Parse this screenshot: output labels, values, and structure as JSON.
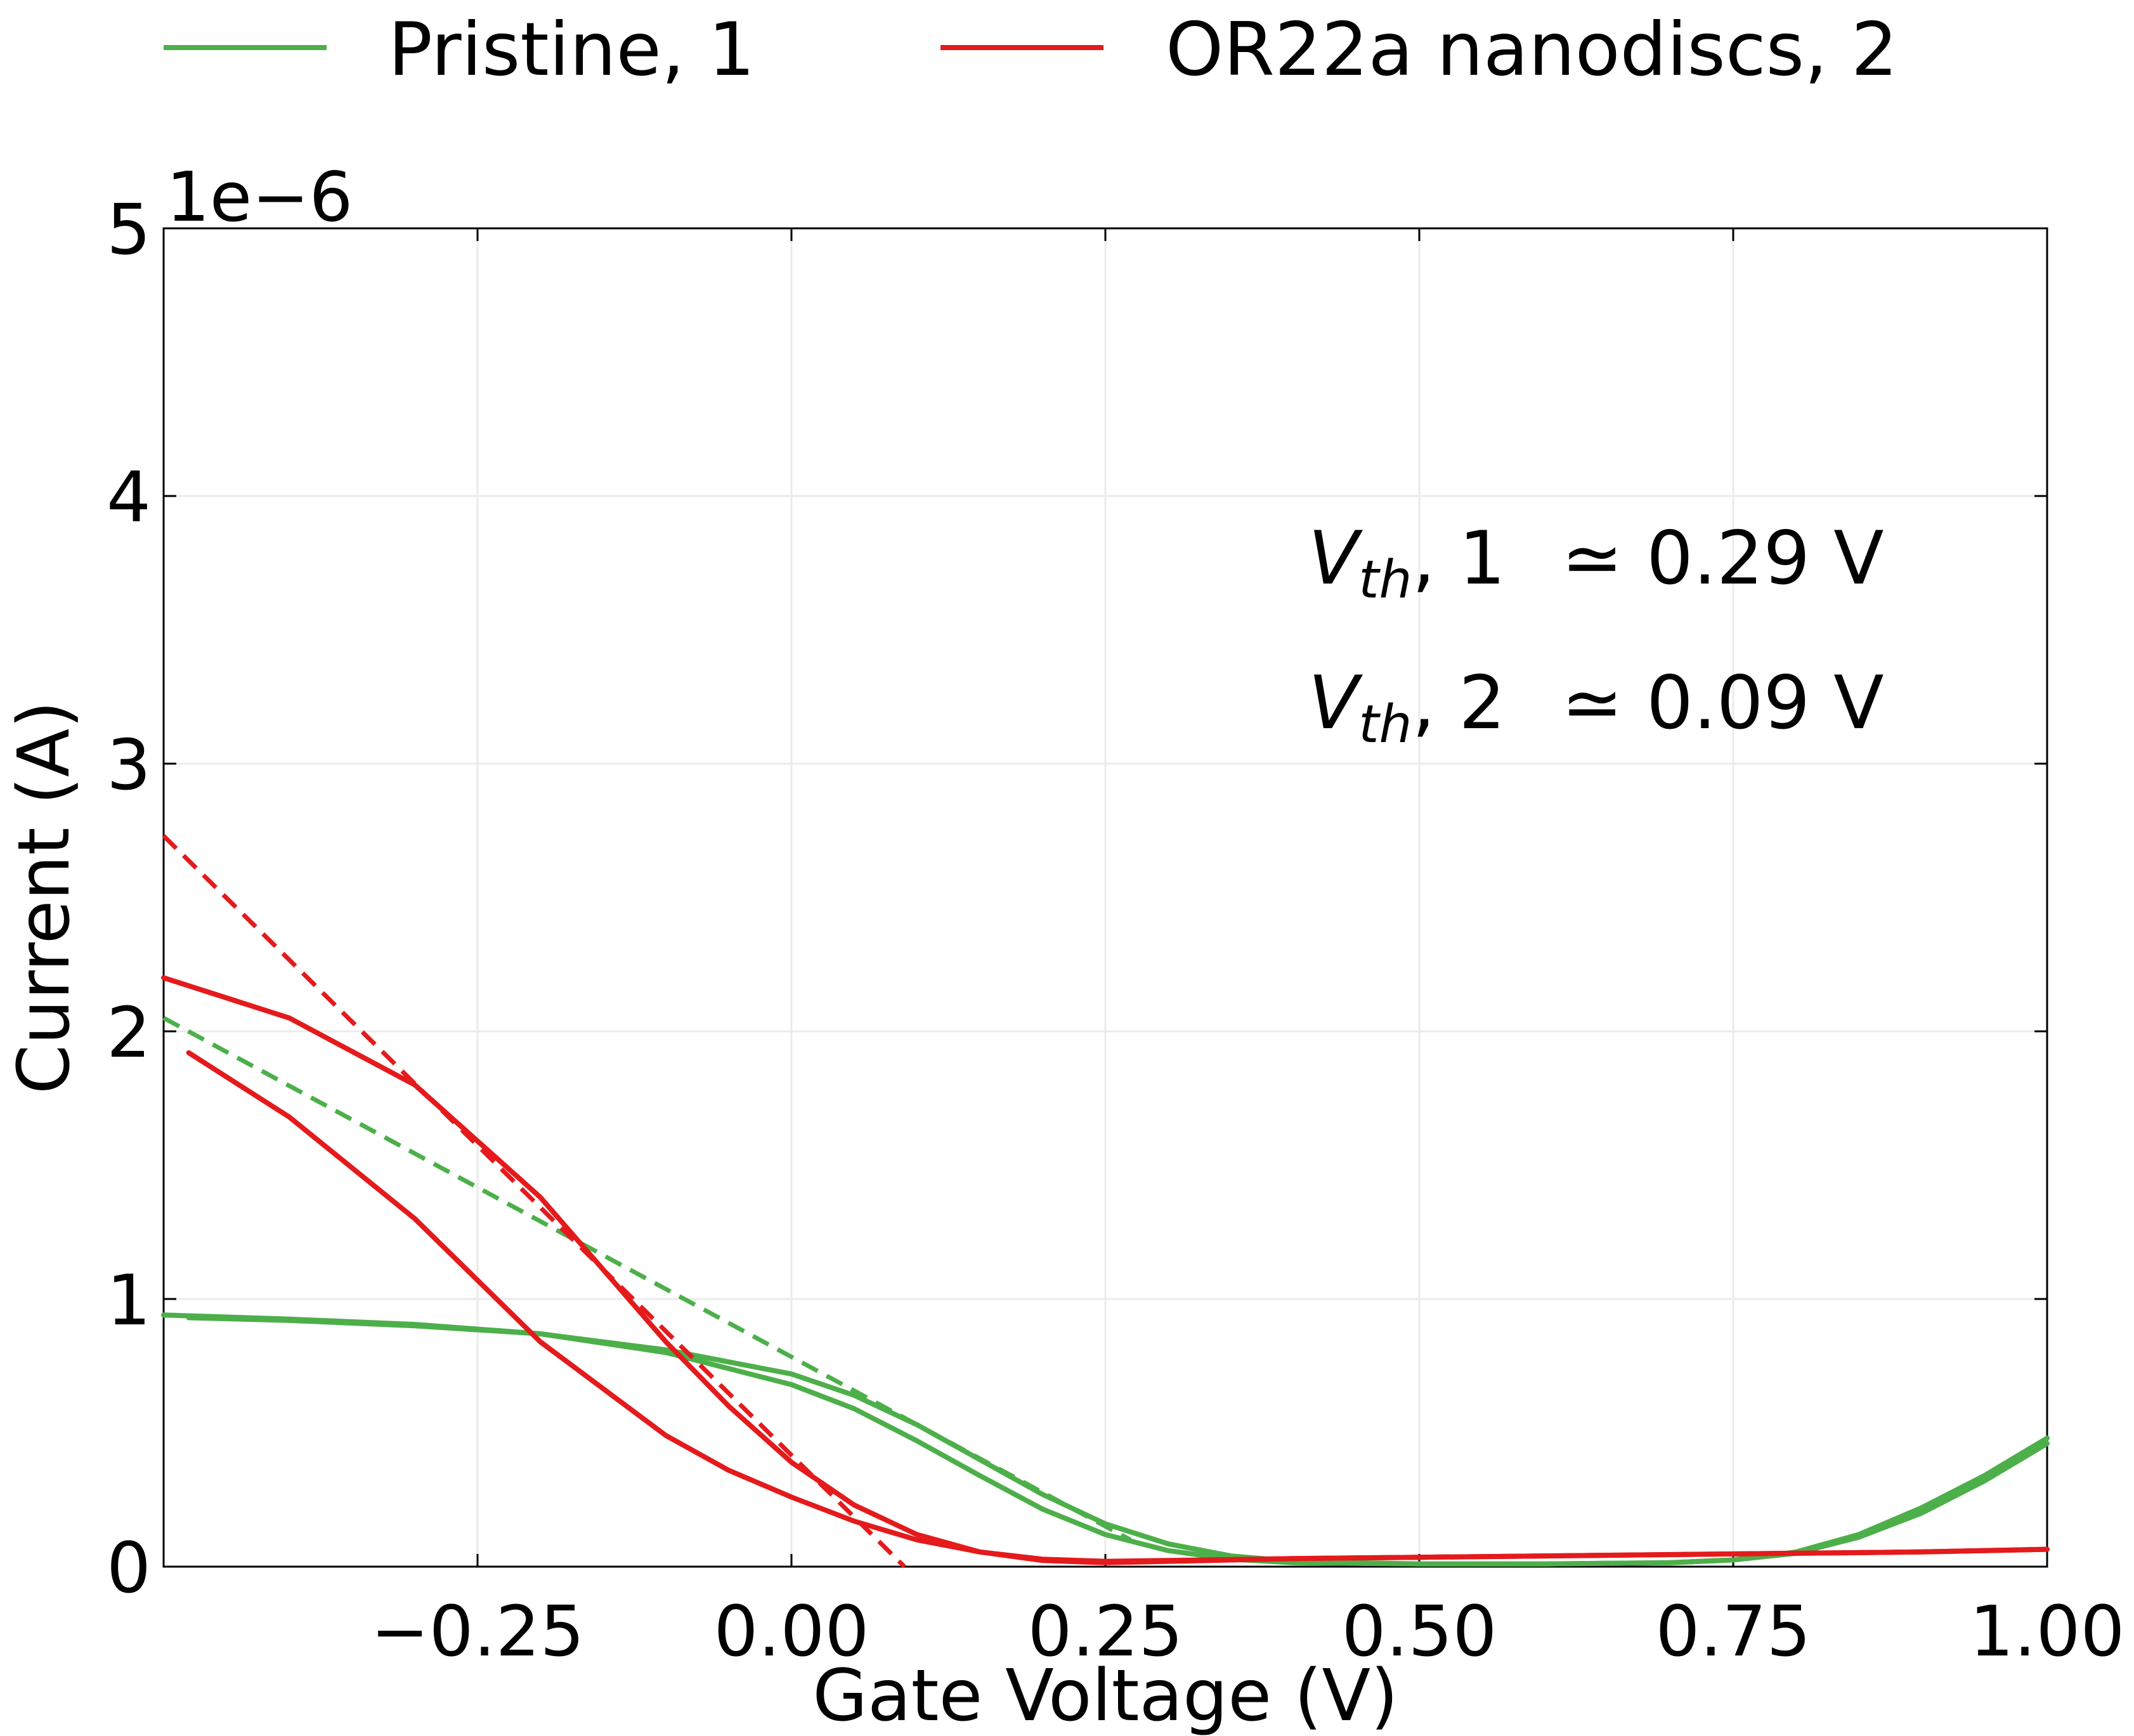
{
  "chart_data": {
    "type": "line",
    "xlabel": "Gate Voltage (V)",
    "ylabel": "Current (A)",
    "y_offset_label": "1e−6",
    "xlim": [
      -0.5,
      1.0
    ],
    "ylim": [
      0,
      5e-06
    ],
    "x_ticks": [
      -0.25,
      0.0,
      0.25,
      0.5,
      0.75,
      1.0
    ],
    "x_tick_labels": [
      "−0.25",
      "0.00",
      "0.25",
      "0.50",
      "0.75",
      "1.00"
    ],
    "y_ticks": [
      0,
      1e-06,
      2e-06,
      3e-06,
      4e-06,
      5e-06
    ],
    "y_tick_labels": [
      "0",
      "1",
      "2",
      "3",
      "4",
      "5"
    ],
    "grid": true,
    "legend_position": "top",
    "legend": [
      {
        "label": "Pristine, 1",
        "color": "#4daf4a"
      },
      {
        "label": "OR22a nanodiscs, 2",
        "color": "#e41a1c"
      }
    ],
    "annotations": [
      {
        "symbol": "V",
        "subscript": "th",
        "label": ", 1",
        "value": "≃ 0.29 V"
      },
      {
        "symbol": "V",
        "subscript": "th",
        "label": ", 2",
        "value": "≃ 0.09 V"
      }
    ],
    "series": [
      {
        "name": "Pristine, 1",
        "color": "#4daf4a",
        "style": "solid",
        "x": [
          -0.5,
          -0.4,
          -0.3,
          -0.2,
          -0.1,
          0.0,
          0.05,
          0.1,
          0.15,
          0.2,
          0.25,
          0.3,
          0.35,
          0.4,
          0.5,
          0.6,
          0.7,
          0.75,
          0.8,
          0.85,
          0.9,
          0.95,
          1.0
        ],
        "y": [
          9.4e-07,
          9.25e-07,
          9.05e-07,
          8.7e-07,
          8e-07,
          6.8e-07,
          5.9e-07,
          4.7e-07,
          3.4e-07,
          2.15e-07,
          1.2e-07,
          6e-08,
          2.8e-08,
          1.5e-08,
          1e-08,
          1e-08,
          1.5e-08,
          2.5e-08,
          5e-08,
          1.1e-07,
          2e-07,
          3.2e-07,
          4.6e-07
        ]
      },
      {
        "name": "Pristine, 1 (reverse sweep)",
        "color": "#4daf4a",
        "style": "solid",
        "x": [
          -0.48,
          -0.4,
          -0.3,
          -0.2,
          -0.1,
          0.0,
          0.05,
          0.1,
          0.15,
          0.2,
          0.25,
          0.3,
          0.35,
          0.4,
          0.5,
          0.6,
          0.7,
          0.75,
          0.8,
          0.85,
          0.9,
          0.95,
          1.0
        ],
        "y": [
          9.3e-07,
          9.2e-07,
          9e-07,
          8.7e-07,
          8.1e-07,
          7.2e-07,
          6.4e-07,
          5.3e-07,
          4e-07,
          2.7e-07,
          1.6e-07,
          8.5e-08,
          4e-08,
          2e-08,
          1e-08,
          1e-08,
          1.5e-08,
          2.5e-08,
          5.5e-08,
          1.2e-07,
          2.2e-07,
          3.4e-07,
          4.8e-07
        ]
      },
      {
        "name": "Pristine, 1 (linear fit)",
        "color": "#4daf4a",
        "style": "dashed",
        "x": [
          -0.5,
          0.27
        ],
        "y": [
          2.05e-06,
          1e-07
        ]
      },
      {
        "name": "OR22a nanodiscs, 2",
        "color": "#e41a1c",
        "style": "solid",
        "x": [
          -0.5,
          -0.4,
          -0.3,
          -0.2,
          -0.1,
          -0.05,
          0.0,
          0.05,
          0.1,
          0.15,
          0.2,
          0.25,
          0.3,
          0.4,
          0.5,
          0.6,
          0.7,
          0.8,
          0.9,
          1.0
        ],
        "y": [
          2.2e-06,
          2.05e-06,
          1.8e-06,
          1.38e-06,
          8.4e-07,
          6e-07,
          3.9e-07,
          2.3e-07,
          1.2e-07,
          5.5e-08,
          2.3e-08,
          1.5e-08,
          2e-08,
          3e-08,
          3.5e-08,
          4e-08,
          4.5e-08,
          5e-08,
          5.5e-08,
          6.5e-08
        ]
      },
      {
        "name": "OR22a nanodiscs, 2 (reverse sweep)",
        "color": "#e41a1c",
        "style": "solid",
        "x": [
          -0.48,
          -0.4,
          -0.3,
          -0.2,
          -0.1,
          -0.05,
          0.0,
          0.05,
          0.1,
          0.15,
          0.2,
          0.25,
          0.3,
          0.4,
          0.5,
          0.6,
          0.7,
          0.8,
          0.9,
          1.0
        ],
        "y": [
          1.92e-06,
          1.68e-06,
          1.3e-06,
          8.4e-07,
          4.9e-07,
          3.6e-07,
          2.6e-07,
          1.7e-07,
          1e-07,
          5.5e-08,
          2.8e-08,
          2e-08,
          2.3e-08,
          3e-08,
          3.5e-08,
          4e-08,
          4.5e-08,
          5e-08,
          5.5e-08,
          6.5e-08
        ]
      },
      {
        "name": "OR22a nanodiscs, 2 (linear fit)",
        "color": "#e41a1c",
        "style": "dashed",
        "x": [
          -0.5,
          0.09
        ],
        "y": [
          2.73e-06,
          0.0
        ]
      }
    ]
  }
}
